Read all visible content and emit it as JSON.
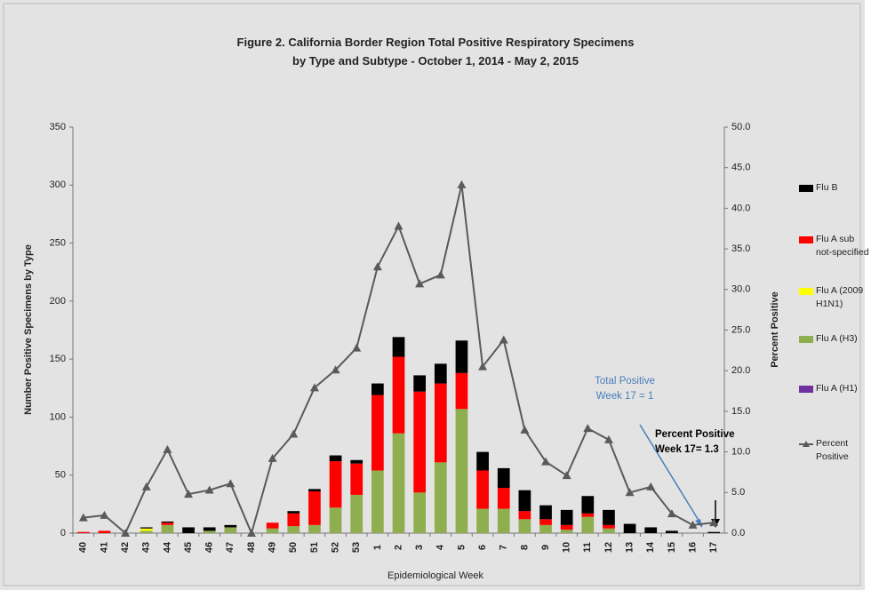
{
  "chart_data": {
    "type": "bar",
    "stacked": true,
    "title": "Figure 2. California Border Region Total Positive Respiratory Specimens by Type and Subtype - October 1, 2014 - May 2, 2015",
    "x_label": "Epidemiological Week",
    "y_label": "Number Positive Specimens by Type",
    "y2_label": "Percent Positive",
    "categories": [
      "40",
      "41",
      "42",
      "43",
      "44",
      "45",
      "46",
      "47",
      "48",
      "49",
      "50",
      "51",
      "52",
      "53",
      "1",
      "2",
      "3",
      "4",
      "5",
      "6",
      "7",
      "8",
      "9",
      "10",
      "11",
      "12",
      "13",
      "14",
      "15",
      "16",
      "17"
    ],
    "series": [
      {
        "name": "Flu B",
        "color": "#000000",
        "values": [
          0,
          0,
          0,
          1,
          1,
          5,
          3,
          2,
          0,
          0,
          2,
          2,
          5,
          3,
          10,
          17,
          14,
          17,
          28,
          16,
          17,
          18,
          12,
          13,
          15,
          13,
          8,
          5,
          2,
          0,
          1
        ]
      },
      {
        "name": "Flu A sub not-specified",
        "color": "#ff0000",
        "values": [
          1,
          2,
          0,
          0,
          2,
          0,
          0,
          0,
          0,
          5,
          11,
          29,
          40,
          27,
          65,
          66,
          87,
          68,
          31,
          33,
          18,
          7,
          5,
          4,
          3,
          3,
          0,
          0,
          0,
          0,
          0
        ]
      },
      {
        "name": "Flu A (2009 H1N1)",
        "color": "#ffff00",
        "values": [
          0,
          0,
          0,
          2,
          0,
          0,
          0,
          0,
          0,
          0,
          0,
          0,
          0,
          0,
          0,
          0,
          0,
          0,
          0,
          0,
          0,
          0,
          0,
          0,
          0,
          0,
          0,
          0,
          0,
          0,
          0
        ]
      },
      {
        "name": "Flu A (H3)",
        "color": "#8fae4f",
        "values": [
          0,
          0,
          0,
          2,
          7,
          0,
          2,
          5,
          0,
          4,
          6,
          7,
          22,
          33,
          54,
          86,
          35,
          61,
          107,
          21,
          21,
          12,
          7,
          3,
          14,
          4,
          0,
          0,
          0,
          0,
          0
        ]
      },
      {
        "name": "Flu A (H1)",
        "color": "#7030a0",
        "values": [
          0,
          0,
          0,
          0,
          0,
          0,
          0,
          0,
          0,
          0,
          0,
          0,
          0,
          0,
          0,
          0,
          0,
          0,
          0,
          0,
          0,
          0,
          0,
          0,
          0,
          0,
          0,
          0,
          0,
          0,
          0
        ]
      },
      {
        "name": "Percent Positive",
        "type": "line",
        "axis": "y2",
        "color": "#5a5a5a",
        "values": [
          1.9,
          2.2,
          0,
          5.7,
          10.3,
          4.8,
          5.3,
          6.1,
          0,
          9.2,
          12.2,
          17.9,
          20.1,
          22.8,
          32.8,
          37.8,
          30.7,
          31.8,
          42.9,
          20.5,
          23.8,
          12.7,
          8.8,
          7.1,
          12.9,
          11.5,
          5.0,
          5.7,
          2.4,
          1.0,
          1.3
        ]
      }
    ],
    "ylim": [
      0,
      350
    ],
    "yticks": [
      0,
      50,
      100,
      150,
      200,
      250,
      300,
      350
    ],
    "y2lim": [
      0,
      50
    ],
    "y2ticks": [
      {
        "value": 0,
        "label": "0.0"
      },
      {
        "value": 5,
        "label": "5.0"
      },
      {
        "value": 10,
        "label": "10.0"
      },
      {
        "value": 15,
        "label": "15.0"
      },
      {
        "value": 20,
        "label": "20.0"
      },
      {
        "value": 25,
        "label": "25.0"
      },
      {
        "value": 30,
        "label": "30.0"
      },
      {
        "value": 35,
        "label": "35.0"
      },
      {
        "value": 40,
        "label": "40.0"
      },
      {
        "value": 45,
        "label": "45.0"
      },
      {
        "value": 50,
        "label": "50.0"
      }
    ],
    "annotations": [
      "Total Positive Week  17 = 1",
      "Percent Positive Week 17= 1.3"
    ]
  }
}
